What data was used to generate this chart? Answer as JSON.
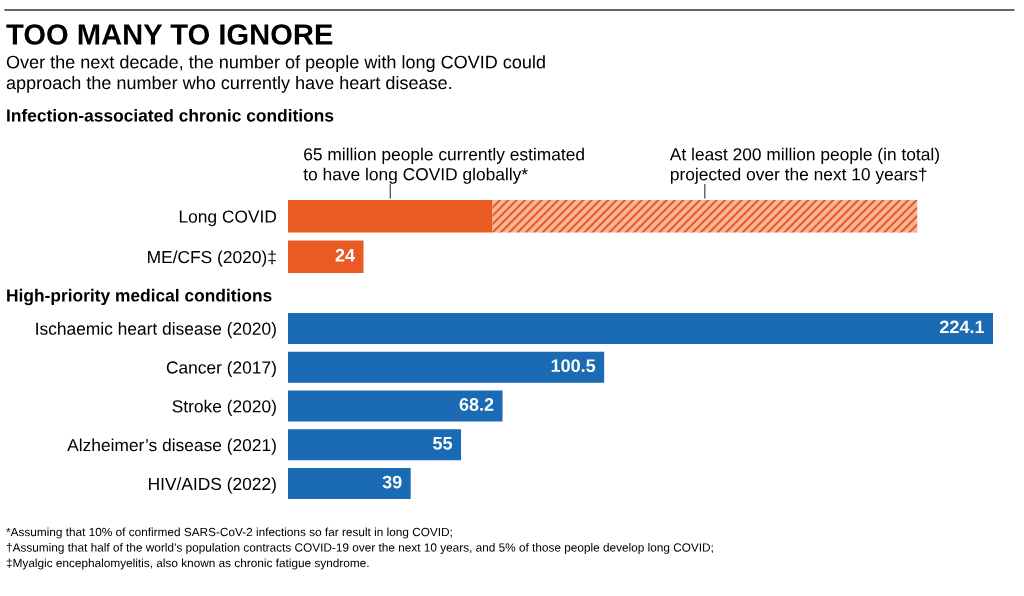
{
  "chart_data": [
    {
      "type": "bar",
      "orientation": "horizontal",
      "stacked": true,
      "title": "TOO MANY TO IGNORE",
      "subtitle": "Over the next decade, the number of people with long COVID could\napproach the number who currently have heart disease.",
      "ylabel": "Infection-associated chronic conditions",
      "categories": [
        "Long COVID",
        "ME/CFS (2020)‡"
      ],
      "series": [
        {
          "color": "#ea5b24",
          "values": [
            65,
            24
          ],
          "value_labels": [
            null,
            "24"
          ]
        },
        {
          "color": "#f7b59b",
          "values": [
            135,
            null
          ],
          "value_labels": [
            null,
            null
          ]
        }
      ],
      "annotations": [
        "65 million people currently estimated\nto have long COVID globally*",
        "At least 200 million people (in total)\nprojected over the next 10 years†"
      ]
    },
    {
      "type": "bar",
      "orientation": "horizontal",
      "ylabel": "High-priority medical conditions",
      "categories": [
        "Ischaemic heart disease (2020)",
        "Cancer (2017)",
        "Stroke (2020)",
        "Alzheimer’s disease (2021)",
        "HIV/AIDS (2022)"
      ],
      "series": [
        {
          "color": "#1a6ab4",
          "values": [
            224.1,
            100.5,
            68.2,
            55,
            39
          ]
        }
      ],
      "data_labels": true,
      "annotations": [
        "*Assuming that 10% of confirmed SARS-CoV-2 infections so far result in long COVID;",
        "†Assuming that half of the world’s population contracts COVID-19 over the next 10 years, and 5% of those people develop long COVID;",
        "‡Myalgic encephalomyelitis, also known as chronic fatigue syndrome."
      ]
    }
  ]
}
